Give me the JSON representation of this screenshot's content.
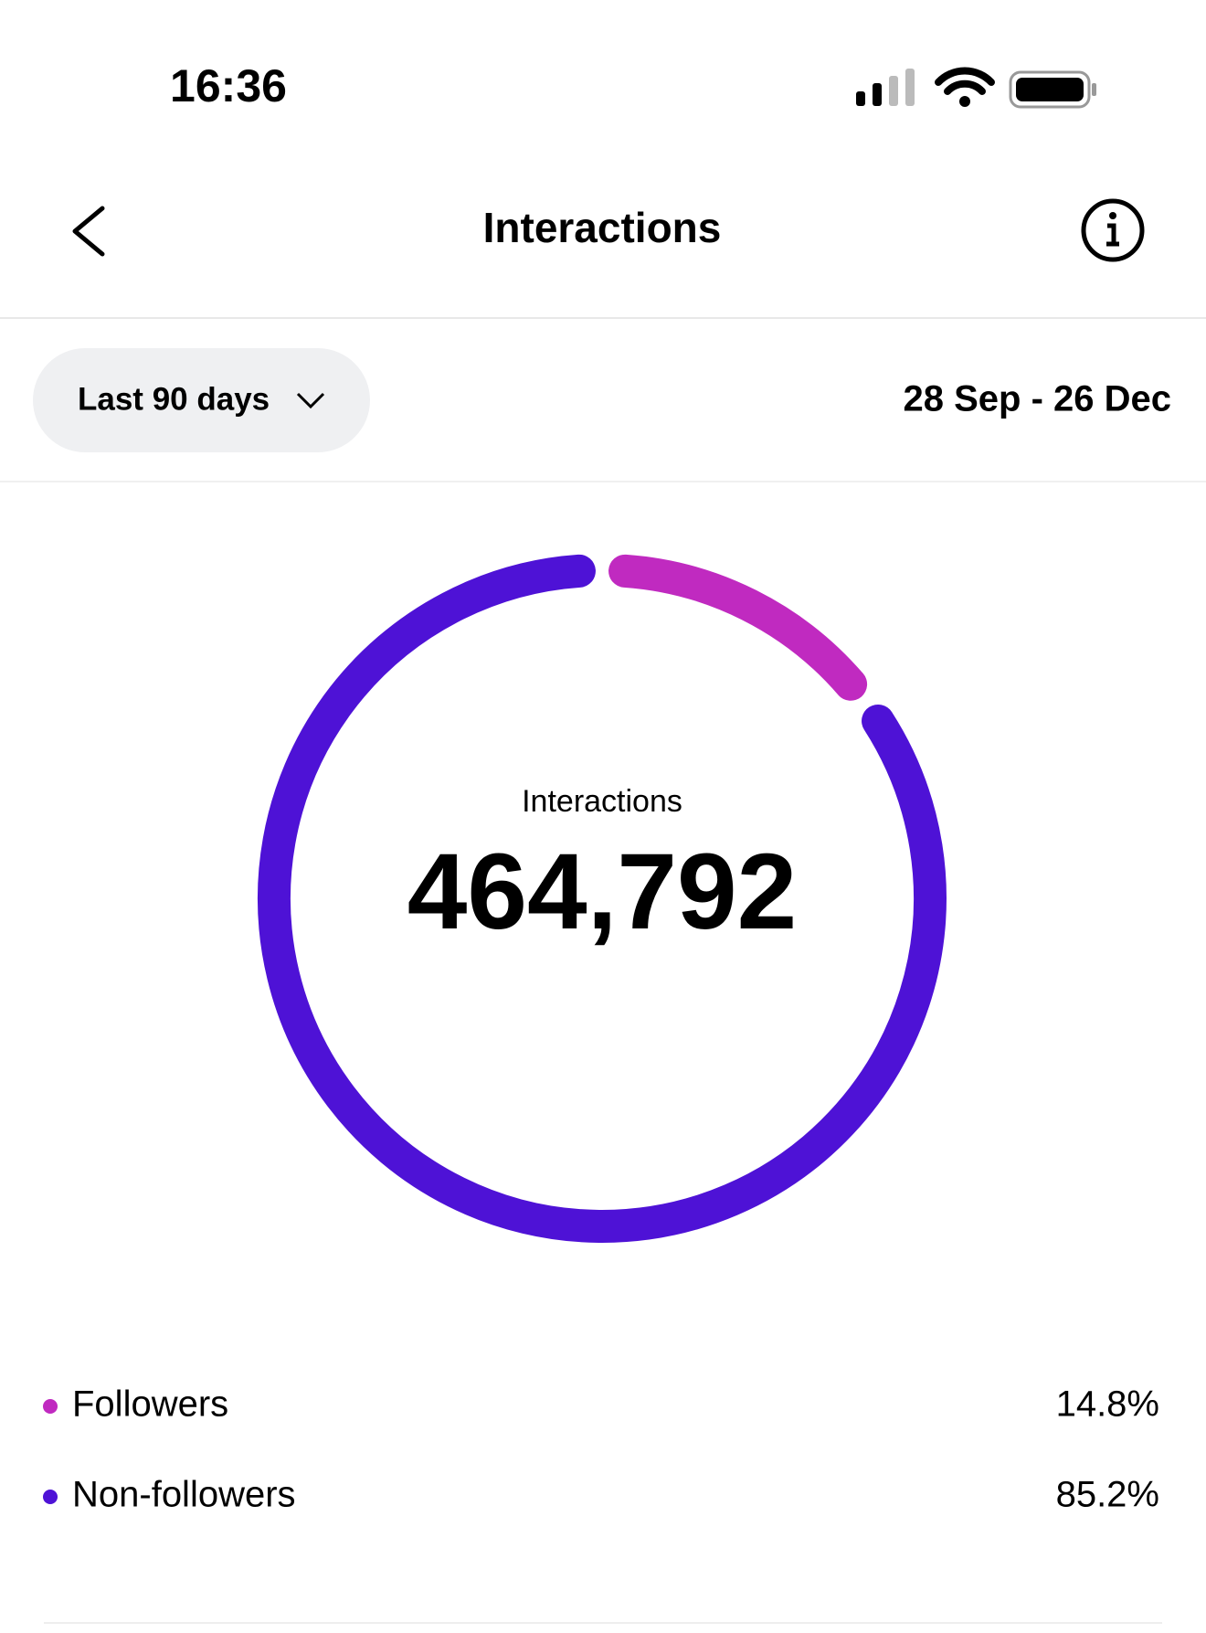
{
  "status_bar": {
    "time": "16:36"
  },
  "header": {
    "title": "Interactions"
  },
  "filter": {
    "label": "Last 90 days",
    "date_range": "28 Sep - 26 Dec"
  },
  "chart_data": {
    "type": "donut",
    "center_label": "Interactions",
    "total": {
      "value": 464792,
      "label": "464,792"
    },
    "categories": [
      "Followers",
      "Non-followers"
    ],
    "values": [
      14.8,
      85.2
    ],
    "value_labels": [
      "14.8%",
      "85.2%"
    ],
    "colors": [
      "#c02ac0",
      "#4e12d6"
    ]
  }
}
